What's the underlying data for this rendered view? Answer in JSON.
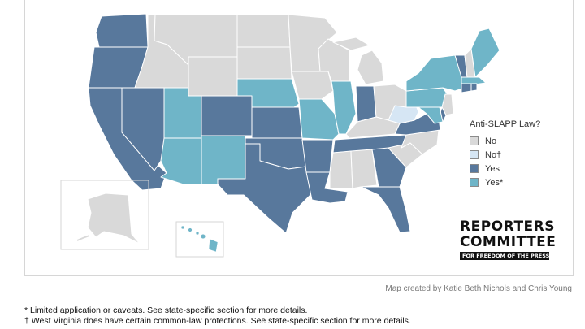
{
  "colors": {
    "no": "#d9d9d9",
    "no_dagger": "#d6e6f4",
    "yes": "#58789c",
    "yes_star": "#6fb5c8",
    "border": "#ffffff",
    "inset_border": "#d6d6d6"
  },
  "legend": {
    "title": "Anti-SLAPP Law?",
    "items": [
      {
        "label": "No",
        "color": "#d9d9d9"
      },
      {
        "label": "No†",
        "color": "#d6e6f4"
      },
      {
        "label": "Yes",
        "color": "#58789c"
      },
      {
        "label": "Yes*",
        "color": "#6fb5c8"
      }
    ]
  },
  "states": {
    "WA": "yes",
    "OR": "yes",
    "CA": "yes",
    "NV": "yes",
    "ID": "no",
    "MT": "no",
    "WY": "no",
    "UT": "yes_star",
    "AZ": "yes_star",
    "CO": "yes",
    "NM": "yes_star",
    "ND": "no",
    "SD": "no",
    "NE": "yes_star",
    "KS": "yes",
    "OK": "yes",
    "TX": "yes",
    "MN": "no",
    "IA": "no",
    "MO": "yes_star",
    "AR": "yes",
    "LA": "yes",
    "WI": "no",
    "IL": "yes_star",
    "MI": "no",
    "IN": "yes",
    "OH": "no",
    "KY": "no",
    "TN": "yes",
    "MS": "no",
    "AL": "no",
    "GA": "yes",
    "FL": "yes",
    "SC": "no",
    "NC": "no",
    "VA": "yes",
    "WV": "no_dagger",
    "PA": "yes_star",
    "NY": "yes_star",
    "VT": "yes",
    "NH": "no",
    "ME": "yes_star",
    "MA": "yes_star",
    "RI": "yes",
    "CT": "yes",
    "NJ": "no",
    "DE": "yes",
    "MD": "yes_star",
    "AK": "no",
    "HI": "yes_star"
  },
  "logo": {
    "line1": "REPORTERS",
    "line2": "COMMITTEE",
    "tagline": "FOR FREEDOM OF THE PRESS"
  },
  "credit": "Map created by Katie Beth Nichols and Chris Young",
  "footnotes": [
    "* Limited application or caveats. See state-specific section for more details.",
    "† West Virginia does have certain common-law protections. See state-specific section for more details."
  ]
}
